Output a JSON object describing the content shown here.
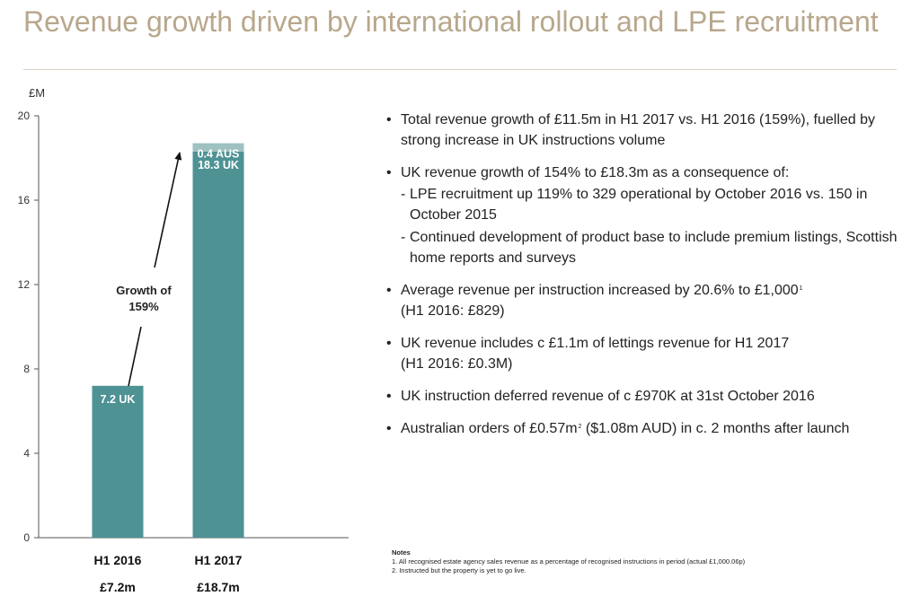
{
  "header": {
    "title": "Revenue growth driven by international rollout and LPE recruitment"
  },
  "chart_data": {
    "type": "bar",
    "stacked": true,
    "ylabel": "£M",
    "ylim": [
      0,
      20
    ],
    "yticks": [
      "0",
      "4",
      "8",
      "12",
      "16",
      "20"
    ],
    "categories": [
      "H1 2016",
      "H1 2017"
    ],
    "category_totals": [
      "£7.2m",
      "£18.7m"
    ],
    "series": [
      {
        "name": "UK",
        "values": [
          7.2,
          18.3
        ],
        "labels": [
          "7.2 UK",
          "18.3 UK"
        ],
        "color": "#4e9294"
      },
      {
        "name": "AUS",
        "values": [
          0,
          0.4
        ],
        "labels": [
          "",
          "0.4 AUS"
        ],
        "color": "#9fc1c1"
      }
    ],
    "annotation": {
      "line1": "Growth of",
      "line2": "159%"
    }
  },
  "bullets": [
    {
      "text": "Total revenue growth of £11.5m in H1 2017 vs. H1 2016 (159%), fuelled by strong increase in UK instructions volume"
    },
    {
      "text": "UK revenue growth of 154% to £18.3m as a consequence of:",
      "subs": [
        "LPE recruitment up 119% to 329 operational by October 2016 vs. 150 in October 2015",
        "Continued development of product base to include premium listings, Scottish home reports and surveys"
      ]
    },
    {
      "text": "Average revenue per instruction increased by 20.6% to £1,000",
      "sup": "1",
      "line2": "(H1 2016: £829)"
    },
    {
      "text": "UK revenue includes c £1.1m of lettings revenue for H1 2017",
      "line2": "(H1 2016: £0.3M)"
    },
    {
      "text": "UK instruction deferred revenue of c £970K at 31st October 2016"
    },
    {
      "text": "Australian orders of £0.57m",
      "sup": "2",
      "tail": " ($1.08m AUD) in c. 2 months after launch"
    }
  ],
  "notes": {
    "title": "Notes",
    "items": [
      "1. All recognised estate agency sales revenue as a percentage of recognised instructions in period (actual £1,000.06p)",
      "2. Instructed but the property is yet to go live."
    ]
  },
  "colors": {
    "title": "#b8a78c",
    "uk_bar": "#4e9294",
    "aus_bar": "#9fc1c1",
    "rule": "#d8cfbf"
  }
}
